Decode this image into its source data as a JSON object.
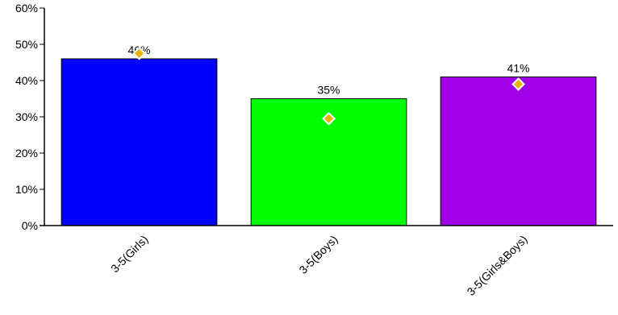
{
  "chart_data": {
    "type": "bar",
    "categories": [
      "3-5(Girls)",
      "3-5(Boys)",
      "3-5(Girls&Boys)"
    ],
    "series": [
      {
        "values": [
          46,
          35,
          41
        ],
        "data_labels": [
          "46%",
          "35%",
          "41%"
        ],
        "colors": [
          "#0000ff",
          "#00ff00",
          "#a000e8"
        ]
      }
    ],
    "markers": {
      "shape": "diamond",
      "color": "#e8b400",
      "values": [
        47.5,
        29.5,
        39
      ]
    },
    "ylim": [
      0,
      60
    ],
    "y_ticks": [
      0,
      10,
      20,
      30,
      40,
      50,
      60
    ],
    "y_tick_labels": [
      "0%",
      "10%",
      "20%",
      "30%",
      "40%",
      "50%",
      "60%"
    ],
    "x_tick_rotation": "-45deg",
    "grid": false,
    "legend": "none",
    "title": "",
    "xlabel": "",
    "ylabel": ""
  }
}
